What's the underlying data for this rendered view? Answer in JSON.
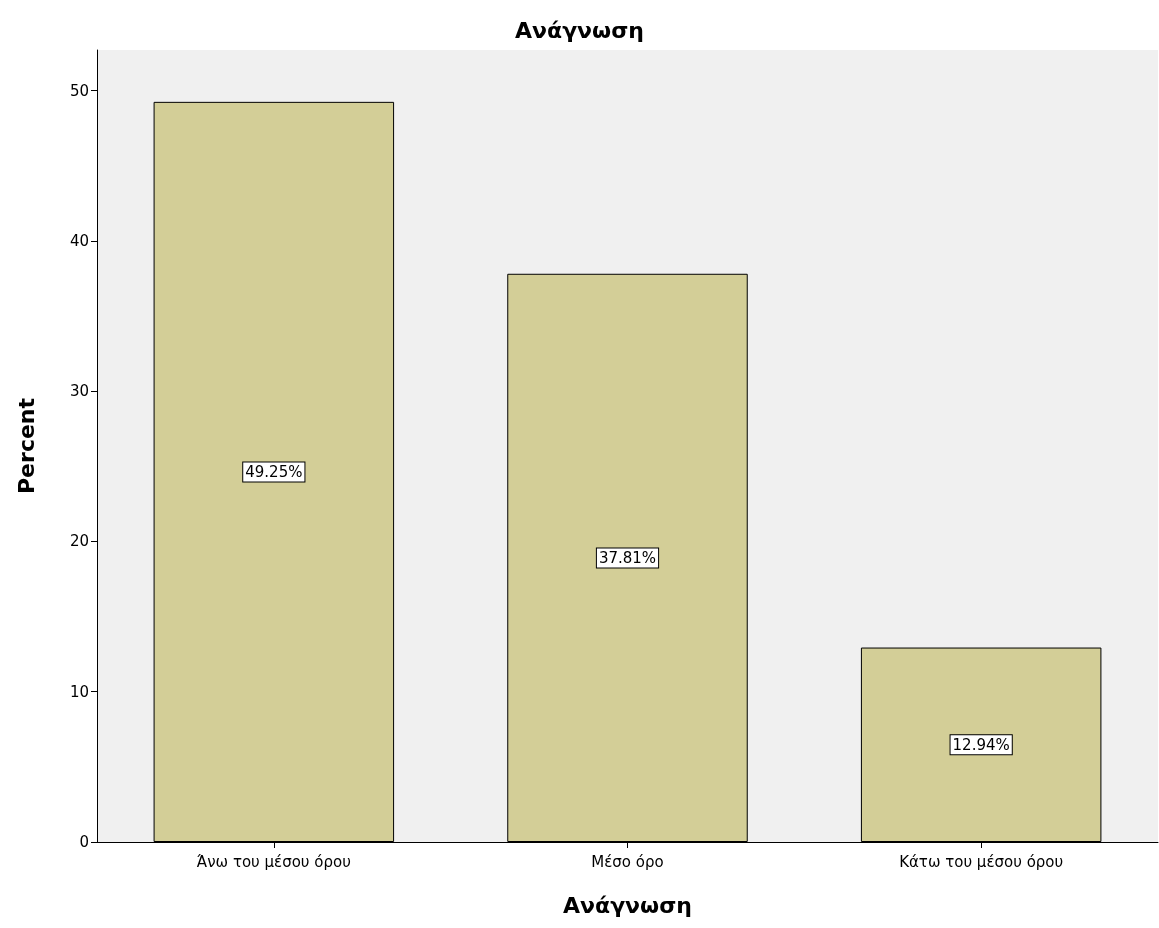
{
  "chart_data": {
    "type": "bar",
    "title": "Ανάγνωση",
    "xlabel": "Ανάγνωση",
    "ylabel": "Percent",
    "categories": [
      "Άνω του μέσου όρου",
      "Μέσο όρο",
      "Κάτω του μέσου όρου"
    ],
    "values": [
      49.25,
      37.81,
      12.94
    ],
    "value_labels": [
      "49.25%",
      "37.81%",
      "12.94%"
    ],
    "color": "#d3ce97",
    "ylim": [
      0,
      52.7
    ],
    "yticks": [
      0,
      10,
      20,
      30,
      40,
      50
    ],
    "grid": false
  }
}
